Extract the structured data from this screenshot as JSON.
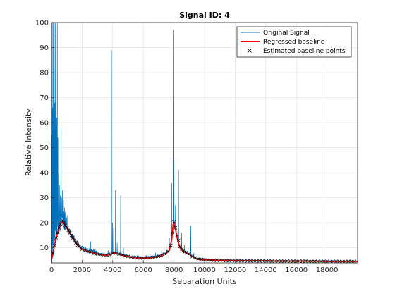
{
  "chart_data": {
    "type": "line",
    "title": "Signal ID: 4",
    "xlabel": "Separation Units",
    "ylabel": "Relative Intensity",
    "xlim": [
      0,
      20000
    ],
    "ylim": [
      4,
      100
    ],
    "xticks": [
      0,
      2000,
      4000,
      6000,
      8000,
      10000,
      12000,
      14000,
      16000,
      18000
    ],
    "yticks": [
      10,
      20,
      30,
      40,
      50,
      60,
      70,
      80,
      90,
      100
    ],
    "grid": true,
    "legend_position": "top-right",
    "series": [
      {
        "name": "Original Signal",
        "color": "#0072BD",
        "style": "line",
        "peaks": [
          [
            20,
            55
          ],
          [
            50,
            100
          ],
          [
            80,
            66
          ],
          [
            120,
            100
          ],
          [
            150,
            82
          ],
          [
            180,
            100
          ],
          [
            220,
            68
          ],
          [
            260,
            100
          ],
          [
            300,
            95
          ],
          [
            340,
            62
          ],
          [
            380,
            100
          ],
          [
            420,
            54
          ],
          [
            470,
            40
          ],
          [
            520,
            35
          ],
          [
            570,
            31
          ],
          [
            620,
            58
          ],
          [
            660,
            30
          ],
          [
            720,
            33
          ],
          [
            780,
            29
          ],
          [
            850,
            26
          ],
          [
            930,
            25
          ],
          [
            1020,
            23
          ],
          [
            1150,
            17
          ],
          [
            1300,
            14
          ],
          [
            1500,
            12
          ],
          [
            1700,
            11
          ],
          [
            1900,
            10
          ],
          [
            2100,
            9
          ],
          [
            2550,
            12.5
          ],
          [
            2850,
            9
          ],
          [
            3300,
            8.5
          ],
          [
            3700,
            9
          ],
          [
            3920,
            89
          ],
          [
            3980,
            20
          ],
          [
            4060,
            18
          ],
          [
            4180,
            33
          ],
          [
            4290,
            12
          ],
          [
            4520,
            31
          ],
          [
            4700,
            10
          ],
          [
            5000,
            8
          ],
          [
            5600,
            7
          ],
          [
            6200,
            7
          ],
          [
            6800,
            8
          ],
          [
            7200,
            9
          ],
          [
            7500,
            11
          ],
          [
            7700,
            14
          ],
          [
            7850,
            36
          ],
          [
            7950,
            97
          ],
          [
            8000,
            45
          ],
          [
            8100,
            27
          ],
          [
            8300,
            41
          ],
          [
            8500,
            16
          ],
          [
            8680,
            11
          ],
          [
            9100,
            19
          ],
          [
            9300,
            8
          ],
          [
            10000,
            6
          ]
        ]
      },
      {
        "name": "Regressed baseline",
        "color": "#FF0000",
        "style": "line",
        "x": [
          0,
          100,
          200,
          300,
          400,
          500,
          600,
          700,
          800,
          900,
          1000,
          1200,
          1400,
          1600,
          1800,
          2000,
          2400,
          2800,
          3200,
          3600,
          3900,
          4100,
          4400,
          4800,
          5200,
          5600,
          6000,
          6400,
          6800,
          7200,
          7500,
          7700,
          7850,
          7950,
          8000,
          8100,
          8250,
          8400,
          8600,
          8800,
          9000,
          9200,
          9500,
          10000,
          11000,
          12000,
          13000,
          14000,
          15000,
          16000,
          17000,
          18000,
          19000,
          20000
        ],
        "y": [
          5,
          8,
          11,
          14,
          16,
          18,
          19.5,
          20.5,
          20,
          19,
          18,
          16,
          14,
          12,
          10.5,
          9.5,
          8.5,
          7.8,
          7.3,
          7,
          7.5,
          8,
          7.5,
          6.8,
          6.3,
          6,
          5.9,
          6,
          6.3,
          7,
          7.8,
          9,
          13,
          19.5,
          20,
          17.5,
          13,
          10,
          8.5,
          8,
          7.5,
          6.5,
          5.5,
          5.2,
          5,
          4.9,
          4.8,
          4.8,
          4.7,
          4.7,
          4.7,
          4.6,
          4.6,
          4.6
        ]
      },
      {
        "name": "Estimated baseline points",
        "color": "#000000",
        "style": "marker-x",
        "x": [
          100,
          200,
          300,
          400,
          500,
          600,
          700,
          800,
          900,
          1000,
          1100,
          1200,
          1300,
          1400,
          1500,
          1600,
          1700,
          1800,
          1900,
          2000,
          2200,
          2400,
          2600,
          2800,
          3000,
          3200,
          3400,
          3600,
          3800,
          4000,
          4200,
          4400,
          4600,
          4800,
          5000,
          5200,
          5400,
          5600,
          5800,
          6000,
          6200,
          6400,
          6600,
          6800,
          7000,
          7200,
          7400,
          7600,
          7800,
          7900,
          8000,
          8100,
          8200,
          8300,
          8400,
          8500,
          8600,
          8700,
          8800,
          9000,
          9200,
          9400,
          9600,
          9800,
          10000,
          10200,
          10400,
          10600,
          10800,
          11000,
          11200,
          11400,
          11600,
          11800,
          12000,
          12200,
          12400,
          12600,
          12800,
          13000,
          13200,
          13400,
          13600,
          13800,
          14000,
          14200,
          14400,
          14600,
          14800,
          15000,
          15200,
          15400,
          15600,
          15800,
          16000,
          16200,
          16400,
          16600,
          16800,
          17000,
          17200,
          17400,
          17600,
          17800,
          18000,
          18200,
          18400,
          18600,
          18800,
          19000,
          19200,
          19400,
          19600,
          19800
        ],
        "y": [
          8,
          11,
          14,
          16,
          18,
          19.5,
          21,
          20,
          19,
          18,
          17,
          16,
          15,
          14,
          13,
          12,
          11,
          10.5,
          10,
          9.5,
          9,
          8.5,
          8.3,
          7.8,
          7.5,
          7.3,
          7.1,
          7,
          7.2,
          7.8,
          7.9,
          7.5,
          7.1,
          6.8,
          6.6,
          6.3,
          6.1,
          6,
          5.9,
          5.9,
          6,
          6,
          6.2,
          6.3,
          6.6,
          7,
          7.5,
          8.5,
          11,
          16,
          20.5,
          18,
          15,
          13,
          10.5,
          9.5,
          8.8,
          8.4,
          8,
          7.5,
          6.5,
          6,
          5.6,
          5.4,
          5.2,
          5.1,
          5,
          5,
          5,
          5,
          5,
          4.9,
          4.9,
          4.9,
          4.9,
          4.9,
          4.8,
          4.8,
          4.8,
          4.8,
          4.8,
          4.8,
          4.8,
          4.8,
          4.8,
          4.8,
          4.7,
          4.7,
          4.7,
          4.7,
          4.7,
          4.7,
          4.7,
          4.7,
          4.7,
          4.7,
          4.7,
          4.7,
          4.6,
          4.6,
          4.6,
          4.6,
          4.6,
          4.6,
          4.6,
          4.6,
          4.6,
          4.6,
          4.6,
          4.6,
          4.6,
          4.6,
          4.6,
          4.6
        ]
      }
    ]
  }
}
